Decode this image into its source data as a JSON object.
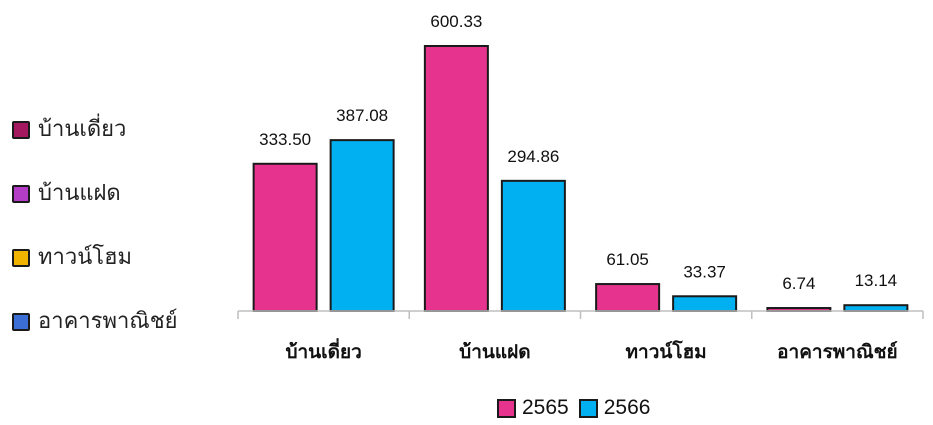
{
  "side_legend": {
    "items": [
      {
        "label": "บ้านเดี่ยว",
        "color": "#A3185E"
      },
      {
        "label": "บ้านแฝด",
        "color": "#B43DC6"
      },
      {
        "label": "ทาวน์โฮม",
        "color": "#F0B400"
      },
      {
        "label": "อาคารพาณิชย์",
        "color": "#3B6FD6"
      }
    ]
  },
  "chart_data": {
    "type": "bar",
    "categories": [
      "บ้านเดี่ยว",
      "บ้านแฝด",
      "ทาวน์โฮม",
      "อาคารพาณิชย์"
    ],
    "series": [
      {
        "name": "2565",
        "values": [
          333.5,
          600.33,
          61.05,
          6.74
        ],
        "labels": [
          "333.50",
          "600.33",
          "61.05",
          "6.74"
        ],
        "color": "#E5338E"
      },
      {
        "name": "2566",
        "values": [
          387.08,
          294.86,
          33.37,
          13.14
        ],
        "labels": [
          "387.08",
          "294.86",
          "33.37",
          "13.14"
        ],
        "color": "#00B0F0"
      }
    ],
    "ylim": [
      0,
      600.33
    ],
    "grid": false,
    "legend_position": "bottom"
  }
}
